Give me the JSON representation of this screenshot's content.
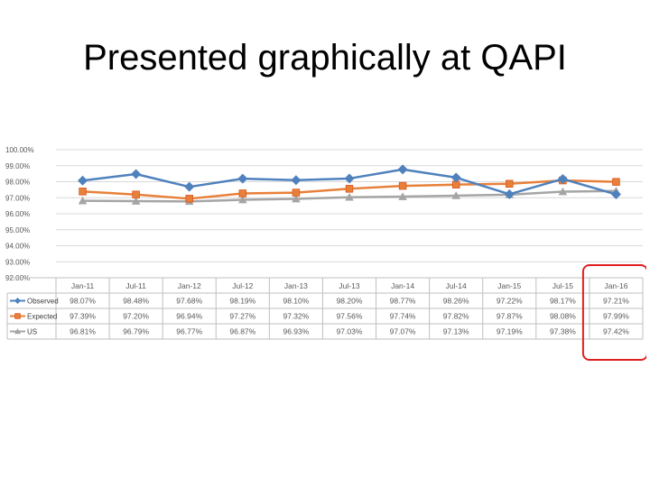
{
  "slide": {
    "title": "Presented graphically at QAPI"
  },
  "chart_data": {
    "type": "line",
    "title": "",
    "xlabel": "",
    "ylabel": "",
    "ylim": [
      92.0,
      100.0
    ],
    "y_ticks": [
      "100.00%",
      "99.00%",
      "98.00%",
      "97.00%",
      "96.00%",
      "95.00%",
      "94.00%",
      "93.00%",
      "92.00%"
    ],
    "grid": true,
    "legend": "data-table-left",
    "categories": [
      "Jan-11",
      "Jul-11",
      "Jan-12",
      "Jul-12",
      "Jan-13",
      "Jul-13",
      "Jan-14",
      "Jul-14",
      "Jan-15",
      "Jul-15",
      "Jan-16"
    ],
    "series": [
      {
        "name": "Observed",
        "color": "#4F81BD",
        "marker": "diamond",
        "values": [
          98.07,
          98.48,
          97.68,
          98.19,
          98.1,
          98.2,
          98.77,
          98.26,
          97.22,
          98.17,
          97.21
        ],
        "labels": [
          "98.07%",
          "98.48%",
          "97.68%",
          "98.19%",
          "98.10%",
          "98.20%",
          "98.77%",
          "98.26%",
          "97.22%",
          "98.17%",
          "97.21%"
        ]
      },
      {
        "name": "Expected",
        "color": "#E8803A",
        "marker": "square",
        "values": [
          97.39,
          97.2,
          96.94,
          97.27,
          97.32,
          97.56,
          97.74,
          97.82,
          97.87,
          98.08,
          97.99
        ],
        "labels": [
          "97.39%",
          "97.20%",
          "96.94%",
          "97.27%",
          "97.32%",
          "97.56%",
          "97.74%",
          "97.82%",
          "97.87%",
          "98.08%",
          "97.99%"
        ]
      },
      {
        "name": "US",
        "color": "#A5A5A5",
        "marker": "triangle",
        "values": [
          96.81,
          96.79,
          96.77,
          96.87,
          96.93,
          97.03,
          97.07,
          97.13,
          97.19,
          97.38,
          97.42
        ],
        "labels": [
          "96.81%",
          "96.79%",
          "96.77%",
          "96.87%",
          "96.93%",
          "97.03%",
          "97.07%",
          "97.13%",
          "97.19%",
          "97.38%",
          "97.42%"
        ]
      }
    ],
    "highlight": {
      "category": "Jan-16",
      "color": "#E02020"
    }
  }
}
